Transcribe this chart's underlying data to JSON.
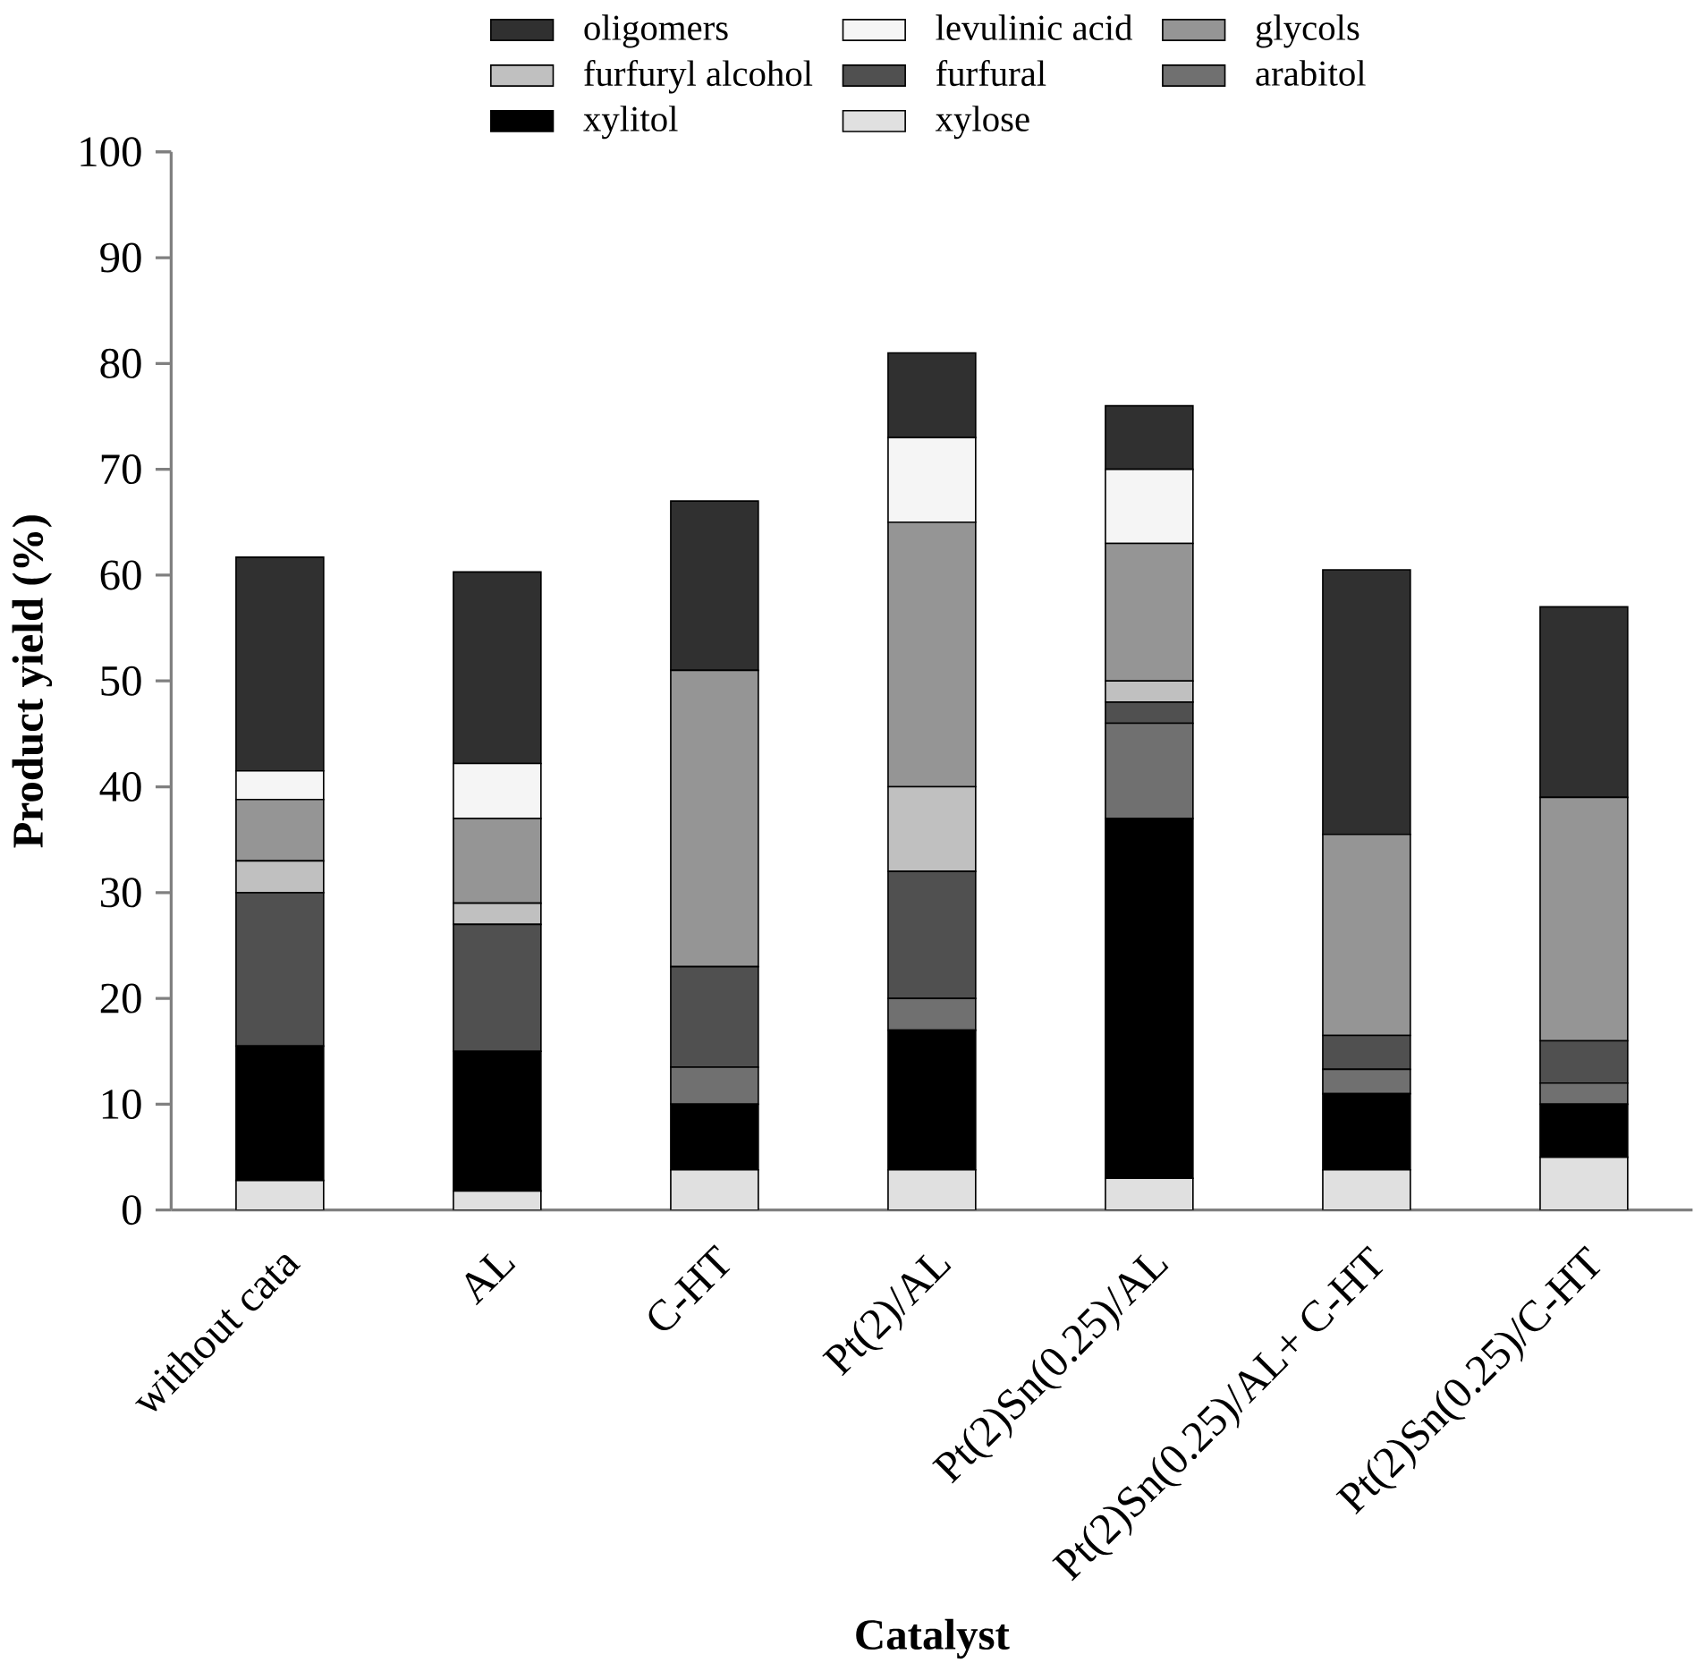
{
  "chart_data": {
    "type": "bar",
    "stacked": true,
    "xlabel": "Catalyst",
    "ylabel": "Product yield (%)",
    "categories": [
      "without cata",
      "AL",
      "C-HT",
      "Pt(2)/AL",
      "Pt(2)Sn(0.25)/AL",
      "Pt(2)Sn(0.25)/AL+ C-HT",
      "Pt(2)Sn(0.25)/C-HT"
    ],
    "series": [
      {
        "name": "xylose",
        "color": "#e0e0e0",
        "values": [
          2.8,
          1.8,
          3.8,
          3.8,
          3,
          3.8,
          5
        ]
      },
      {
        "name": "xylitol",
        "color": "#000000",
        "values": [
          12.7,
          13.2,
          6.2,
          13.2,
          34,
          7.2,
          5
        ]
      },
      {
        "name": "arabitol",
        "color": "#707070",
        "values": [
          0,
          0,
          3.5,
          3,
          9,
          2.3,
          2
        ]
      },
      {
        "name": "furfural",
        "color": "#505050",
        "values": [
          14.5,
          12,
          9.5,
          12,
          2,
          3.2,
          4
        ]
      },
      {
        "name": "furfuryl alcohol",
        "color": "#c0c0c0",
        "values": [
          3,
          2,
          0,
          8,
          2,
          0,
          0
        ]
      },
      {
        "name": "glycols",
        "color": "#959595",
        "values": [
          5.8,
          8,
          28,
          25,
          13,
          19,
          23
        ]
      },
      {
        "name": "levulinic acid",
        "color": "#f5f5f5",
        "values": [
          2.7,
          5.2,
          0,
          8,
          7,
          0,
          0
        ]
      },
      {
        "name": "oligomers",
        "color": "#303030",
        "values": [
          20.2,
          18.1,
          16,
          8,
          6,
          25,
          18
        ]
      }
    ],
    "ylim": [
      0,
      100
    ],
    "yticks": [
      0,
      10,
      20,
      30,
      40,
      50,
      60,
      70,
      80,
      90,
      100
    ],
    "legend": "top"
  }
}
